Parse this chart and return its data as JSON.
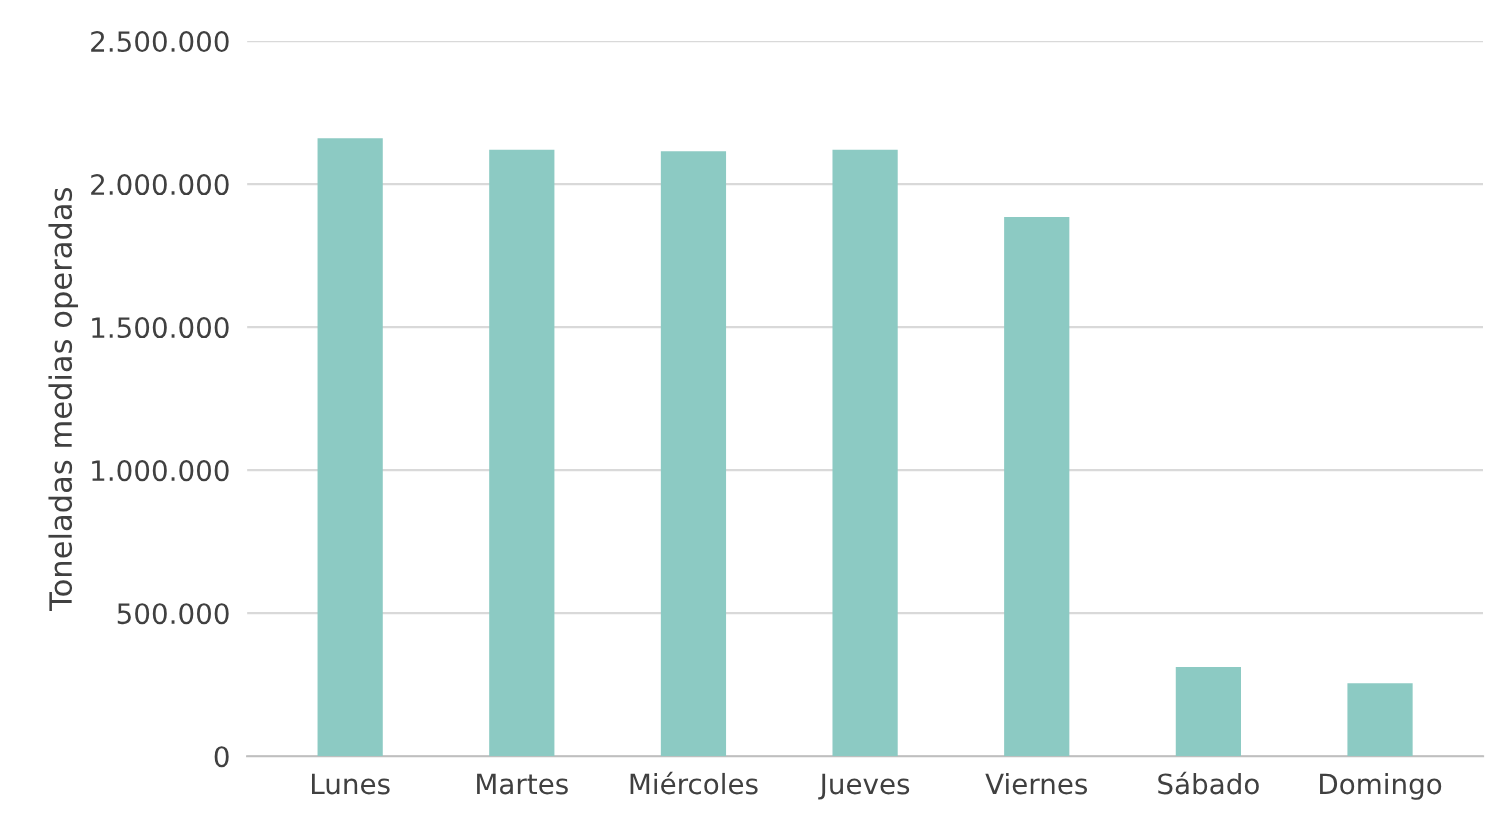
{
  "chart_data": {
    "type": "bar",
    "ylabel": "Toneladas medias operadas",
    "categories": [
      "Lunes",
      "Martes",
      "Miércoles",
      "Jueves",
      "Viernes",
      "Sábado",
      "Domingo"
    ],
    "values": [
      2160000,
      2120000,
      2115000,
      2120000,
      1885000,
      312000,
      255000
    ],
    "color": "#8ccac3",
    "ylim": [
      0,
      2500000
    ],
    "yticks": [
      {
        "value": 0,
        "label": "0"
      },
      {
        "value": 500000,
        "label": "500.000"
      },
      {
        "value": 1000000,
        "label": "1.000.000"
      },
      {
        "value": 1500000,
        "label": "1.500.000"
      },
      {
        "value": 2000000,
        "label": "2.000.000"
      },
      {
        "value": 2500000,
        "label": "2.500.000"
      }
    ],
    "grid": "y"
  }
}
